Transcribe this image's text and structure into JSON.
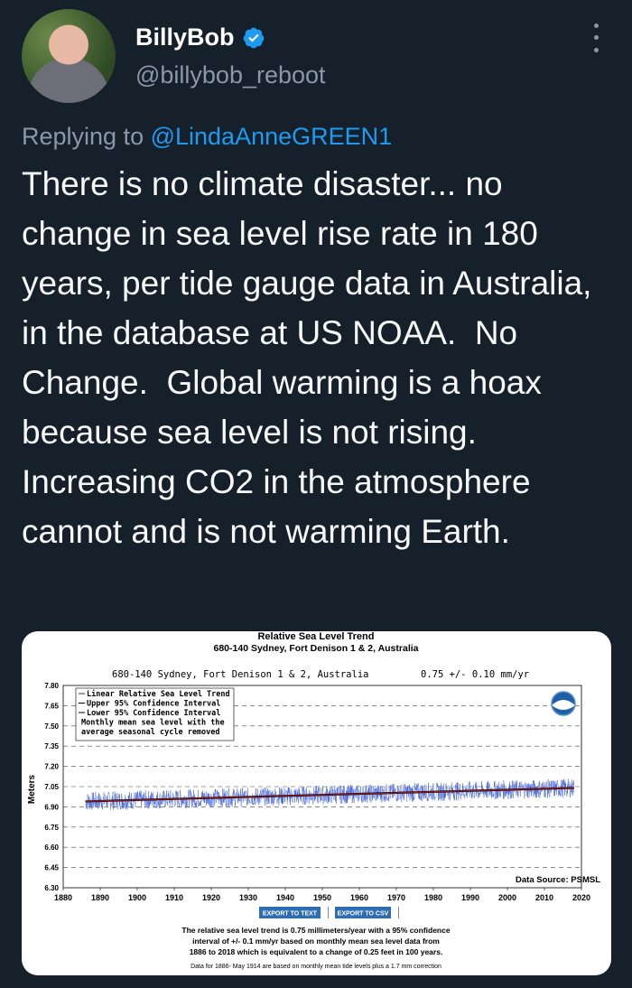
{
  "author": {
    "display_name": "BillyBob",
    "handle": "@billybob_reboot",
    "verified_icon": "verified-badge-icon",
    "more_icon": "more-icon"
  },
  "reply": {
    "prefix": "Replying to ",
    "target": "@LindaAnneGREEN1"
  },
  "tweet_text": "There is no climate disaster... no change in sea level rise rate in 180 years, per tide gauge data in Australia, in the database at US NOAA.  No Change.  Global warming is a hoax because sea level is not rising.  Increasing CO2 in the atmosphere cannot and is not warming Earth.",
  "colors": {
    "accent": "#1d9bf0",
    "background": "#15202b",
    "muted": "#8b98a5"
  },
  "chart": {
    "title": "Relative Sea Level Trend",
    "subtitle": "680-140 Sydney, Fort Denison 1 & 2, Australia",
    "plot_header_left": "680-140 Sydney, Fort Denison 1 & 2, Australia",
    "plot_header_right": "0.75 +/-  0.10 mm/yr",
    "ylabel": "Meters",
    "data_source": "Data Source: PSMSL",
    "legend": [
      "Linear Relative Sea Level Trend",
      "Upper 95% Confidence Interval",
      "Lower 95% Confidence Interval",
      "Monthly mean sea level with the",
      "average seasonal cycle removed"
    ],
    "buttons": {
      "export_text": "EXPORT TO TEXT",
      "export_csv": "EXPORT TO CSV"
    },
    "caption": [
      "The relative sea level trend is 0.75 millimeters/year with a 95% confidence",
      "interval of +/- 0.1 mm/yr based on monthly mean sea level data from",
      "1886 to 2018 which is equivalent to a change of 0.25 feet in 100 years."
    ],
    "footnote": "Data for 1886- May 1914 are based on monthly mean tide levels plus a 1.7 mm correction"
  },
  "chart_data": {
    "type": "line",
    "title": "Relative Sea Level Trend",
    "ylabel": "Meters",
    "xlim": [
      1880,
      2020
    ],
    "ylim": [
      6.3,
      7.8
    ],
    "yticks": [
      "7.80",
      "7.65",
      "7.50",
      "7.35",
      "7.20",
      "7.05",
      "6.90",
      "6.75",
      "6.60",
      "6.45",
      "6.30"
    ],
    "xticks": [
      "1880",
      "1890",
      "1900",
      "1910",
      "1920",
      "1930",
      "1940",
      "1950",
      "1960",
      "1970",
      "1980",
      "1990",
      "2000",
      "2010",
      "2020"
    ],
    "trend": {
      "name": "Linear Relative Sea Level Trend",
      "x": [
        1886,
        2018
      ],
      "y": [
        6.94,
        7.04
      ]
    },
    "monthly_series": {
      "name": "Monthly mean sea level with the average seasonal cycle removed",
      "x_start": 1886,
      "x_end": 2018,
      "mean": 6.99,
      "spread": 0.07
    },
    "rate": "0.75 +/-  0.10 mm/yr",
    "grid": true,
    "legend_position": "top-left"
  }
}
